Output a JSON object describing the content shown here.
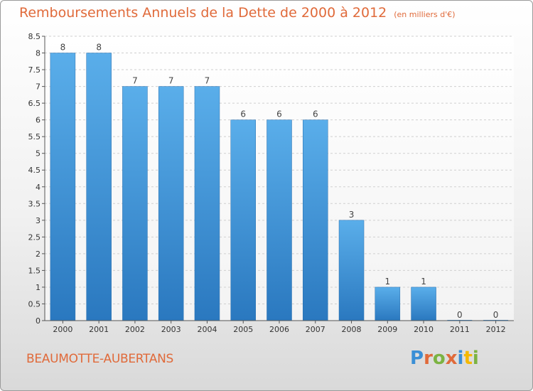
{
  "chart_data": {
    "type": "bar",
    "title": "Remboursements Annuels de la Dette de 2000 à 2012",
    "unit": "(en milliers d'€)",
    "categories": [
      "2000",
      "2001",
      "2002",
      "2003",
      "2004",
      "2005",
      "2006",
      "2007",
      "2008",
      "2009",
      "2010",
      "2011",
      "2012"
    ],
    "values": [
      8,
      8,
      7,
      7,
      7,
      6,
      6,
      6,
      3,
      1,
      1,
      0,
      0
    ],
    "data_labels": [
      "8",
      "8",
      "7",
      "7",
      "7",
      "6",
      "6",
      "6",
      "3",
      "1",
      "1",
      "0",
      "0"
    ],
    "ylim": [
      0,
      8.5
    ],
    "yticks": [
      "0",
      "0.5",
      "1",
      "1.5",
      "2",
      "2.5",
      "3",
      "3.5",
      "4",
      "4.5",
      "5",
      "5.5",
      "6",
      "6.5",
      "7",
      "7.5",
      "8",
      "8.5"
    ],
    "ytick_values": [
      0,
      0.5,
      1,
      1.5,
      2,
      2.5,
      3,
      3.5,
      4,
      4.5,
      5,
      5.5,
      6,
      6.5,
      7,
      7.5,
      8,
      8.5
    ],
    "grid": true,
    "bar_color": "#3a8fd6",
    "title_color": "#e06a3a"
  },
  "footer": {
    "commune": "BEAUMOTTE-AUBERTANS",
    "logo": [
      "P",
      "r",
      "o",
      "x",
      "i",
      "t",
      "i"
    ],
    "logo_colors": [
      "#3a8fd6",
      "#e06a3a",
      "#7cb342",
      "#e06a3a",
      "#3a8fd6",
      "#f5b800",
      "#7cb342"
    ]
  }
}
